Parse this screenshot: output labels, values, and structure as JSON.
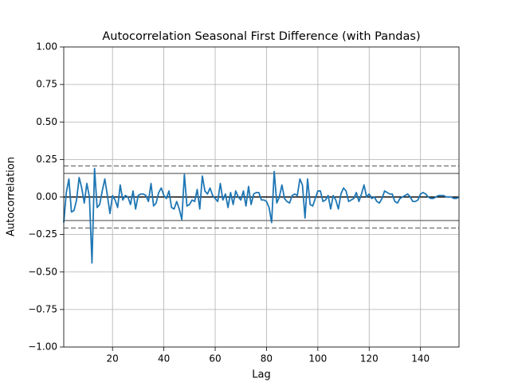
{
  "chart_data": {
    "type": "line",
    "title": "Autocorrelation Seasonal First Difference (with Pandas)",
    "x_label": "Lag",
    "y_label": "Autocorrelation",
    "x": [
      1,
      2,
      3,
      4,
      5,
      6,
      7,
      8,
      9,
      10,
      11,
      12,
      13,
      14,
      15,
      16,
      17,
      18,
      19,
      20,
      21,
      22,
      23,
      24,
      25,
      26,
      27,
      28,
      29,
      30,
      31,
      32,
      33,
      34,
      35,
      36,
      37,
      38,
      39,
      40,
      41,
      42,
      43,
      44,
      45,
      46,
      47,
      48,
      49,
      50,
      51,
      52,
      53,
      54,
      55,
      56,
      57,
      58,
      59,
      60,
      61,
      62,
      63,
      64,
      65,
      66,
      67,
      68,
      69,
      70,
      71,
      72,
      73,
      74,
      75,
      76,
      77,
      78,
      79,
      80,
      81,
      82,
      83,
      84,
      85,
      86,
      87,
      88,
      89,
      90,
      91,
      92,
      93,
      94,
      95,
      96,
      97,
      98,
      99,
      100,
      101,
      102,
      103,
      104,
      105,
      106,
      107,
      108,
      109,
      110,
      111,
      112,
      113,
      114,
      115,
      116,
      117,
      118,
      119,
      120,
      121,
      122,
      123,
      124,
      125,
      126,
      127,
      128,
      129,
      130,
      131,
      132,
      133,
      134,
      135,
      136,
      137,
      138,
      139,
      140,
      141,
      142,
      143,
      144,
      145,
      146,
      147,
      148,
      149,
      150,
      151,
      152,
      153,
      154,
      155
    ],
    "series": [
      {
        "color": "#1f77b4",
        "values": [
          -0.17,
          0.03,
          0.12,
          -0.1,
          -0.09,
          -0.02,
          0.13,
          0.06,
          -0.04,
          0.09,
          0.0,
          -0.44,
          0.19,
          -0.07,
          -0.05,
          0.04,
          0.12,
          0.01,
          -0.11,
          0.01,
          -0.02,
          -0.07,
          0.08,
          -0.02,
          0.01,
          0.0,
          -0.05,
          0.04,
          -0.08,
          0.01,
          0.02,
          0.02,
          0.01,
          -0.03,
          0.09,
          -0.06,
          -0.04,
          0.03,
          0.06,
          0.01,
          -0.01,
          0.04,
          -0.07,
          -0.08,
          -0.03,
          -0.08,
          -0.15,
          0.15,
          -0.06,
          -0.05,
          -0.02,
          -0.03,
          0.05,
          -0.08,
          0.14,
          0.04,
          0.02,
          0.06,
          0.01,
          -0.01,
          -0.03,
          0.09,
          -0.02,
          0.02,
          -0.07,
          0.03,
          -0.05,
          0.04,
          0.0,
          -0.02,
          0.04,
          -0.06,
          0.07,
          -0.05,
          0.02,
          0.03,
          0.03,
          -0.02,
          -0.02,
          -0.03,
          -0.07,
          -0.17,
          0.17,
          -0.04,
          0.0,
          0.08,
          -0.01,
          -0.03,
          -0.04,
          0.01,
          0.02,
          0.01,
          0.12,
          0.08,
          -0.14,
          0.12,
          -0.05,
          -0.06,
          -0.01,
          0.04,
          0.04,
          -0.03,
          -0.02,
          0.01,
          -0.08,
          0.01,
          -0.02,
          -0.08,
          0.02,
          0.06,
          0.04,
          -0.03,
          -0.02,
          -0.01,
          0.03,
          -0.03,
          0.02,
          0.08,
          0.0,
          0.02,
          -0.01,
          0.0,
          -0.03,
          -0.04,
          -0.01,
          0.04,
          0.03,
          0.02,
          0.02,
          -0.03,
          -0.04,
          -0.01,
          0.0,
          0.01,
          0.02,
          0.0,
          -0.03,
          -0.03,
          -0.02,
          0.02,
          0.03,
          0.02,
          0.0,
          -0.01,
          -0.01,
          0.0,
          0.01,
          0.01,
          0.01,
          0.0,
          0.0,
          0.0,
          -0.01,
          -0.01,
          0.0
        ]
      }
    ],
    "reference_lines": [
      {
        "value": 0.2069,
        "color": "#808080",
        "style": "dashed"
      },
      {
        "value": 0.1574,
        "color": "#808080",
        "style": "solid"
      },
      {
        "value": 0,
        "color": "#000000",
        "style": "solid"
      },
      {
        "value": -0.1574,
        "color": "#808080",
        "style": "solid"
      },
      {
        "value": -0.2069,
        "color": "#808080",
        "style": "dashed"
      }
    ],
    "xlim": [
      1,
      155
    ],
    "xticks": [
      20,
      40,
      60,
      80,
      100,
      120,
      140
    ],
    "ylim": [
      -1,
      1
    ],
    "yticks": [
      {
        "value": -1,
        "label": "−1.00"
      },
      {
        "value": -0.75,
        "label": "−0.75"
      },
      {
        "value": -0.5,
        "label": "−0.50"
      },
      {
        "value": -0.25,
        "label": "−0.25"
      },
      {
        "value": 0,
        "label": "0.00"
      },
      {
        "value": 0.25,
        "label": "0.25"
      },
      {
        "value": 0.5,
        "label": "0.50"
      },
      {
        "value": 0.75,
        "label": "0.75"
      },
      {
        "value": 1,
        "label": "1.00"
      }
    ],
    "grid": true
  }
}
